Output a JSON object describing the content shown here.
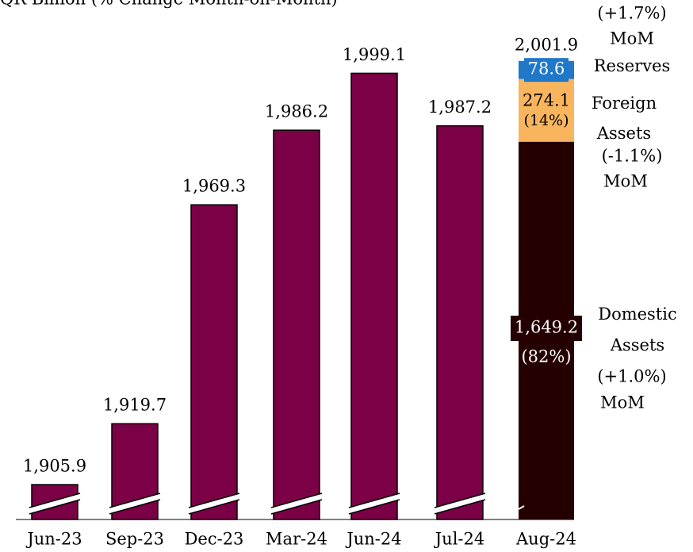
{
  "chart_data": {
    "type": "bar",
    "title": "QR Billion (% Change Month-on-Month)",
    "categories": [
      "Jun-23",
      "Sep-23",
      "Dec-23",
      "Mar-24",
      "Jun-24",
      "Jul-24",
      "Aug-24"
    ],
    "values": [
      1905.9,
      1919.7,
      1969.3,
      1986.2,
      1999.1,
      1987.2,
      2001.9
    ],
    "value_labels": [
      "1,905.9",
      "1,919.7",
      "1,969.3",
      "1,986.2",
      "1,999.1",
      "1,987.2",
      "2,001.9"
    ],
    "color": "#7b0046",
    "ylim": [
      1898,
      2006
    ],
    "axis_break": true,
    "stack": {
      "category": 6,
      "segments": [
        {
          "name": "Domestic Assets",
          "value": 1649.2,
          "value_label": "1,649.2",
          "share": "(82%)",
          "change": "(+1.0%)",
          "change_unit": "MoM",
          "color": "#250000"
        },
        {
          "name": "Foreign Assets",
          "value": 274.1,
          "share": "(14%)",
          "change": "(-1.1%)",
          "change_unit": "MoM",
          "color": "#f9b55e"
        },
        {
          "name": "Reserves",
          "value": 78.6,
          "change": "(+1.7%)",
          "change_unit": "MoM",
          "color": "#1f78c8"
        }
      ]
    }
  }
}
